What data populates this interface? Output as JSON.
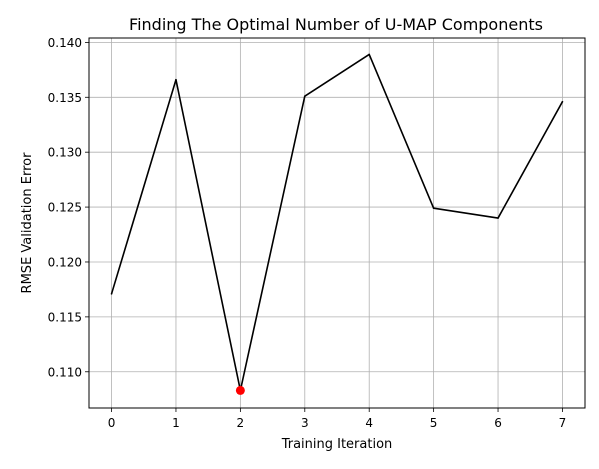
{
  "chart_data": {
    "type": "line",
    "title": "Finding The Optimal Number of U-MAP Components",
    "xlabel": "Training Iteration",
    "ylabel": "RMSE Validation Error",
    "x": [
      0,
      1,
      2,
      3,
      4,
      5,
      6,
      7
    ],
    "series": [
      {
        "values": [
          0.1171,
          0.1366,
          0.1083,
          0.1351,
          0.1389,
          0.1249,
          0.124,
          0.1346
        ],
        "color": "#000000"
      }
    ],
    "highlight_point": {
      "x": 2,
      "y": 0.1083,
      "color": "#ff0000"
    },
    "x_ticks": [
      "0",
      "1",
      "2",
      "3",
      "4",
      "5",
      "6",
      "7"
    ],
    "y_ticks": [
      "0.110",
      "0.115",
      "0.120",
      "0.125",
      "0.130",
      "0.135",
      "0.140"
    ],
    "xlim": [
      -0.35,
      7.35
    ],
    "ylim": [
      0.1067,
      0.1404
    ],
    "grid": true
  }
}
